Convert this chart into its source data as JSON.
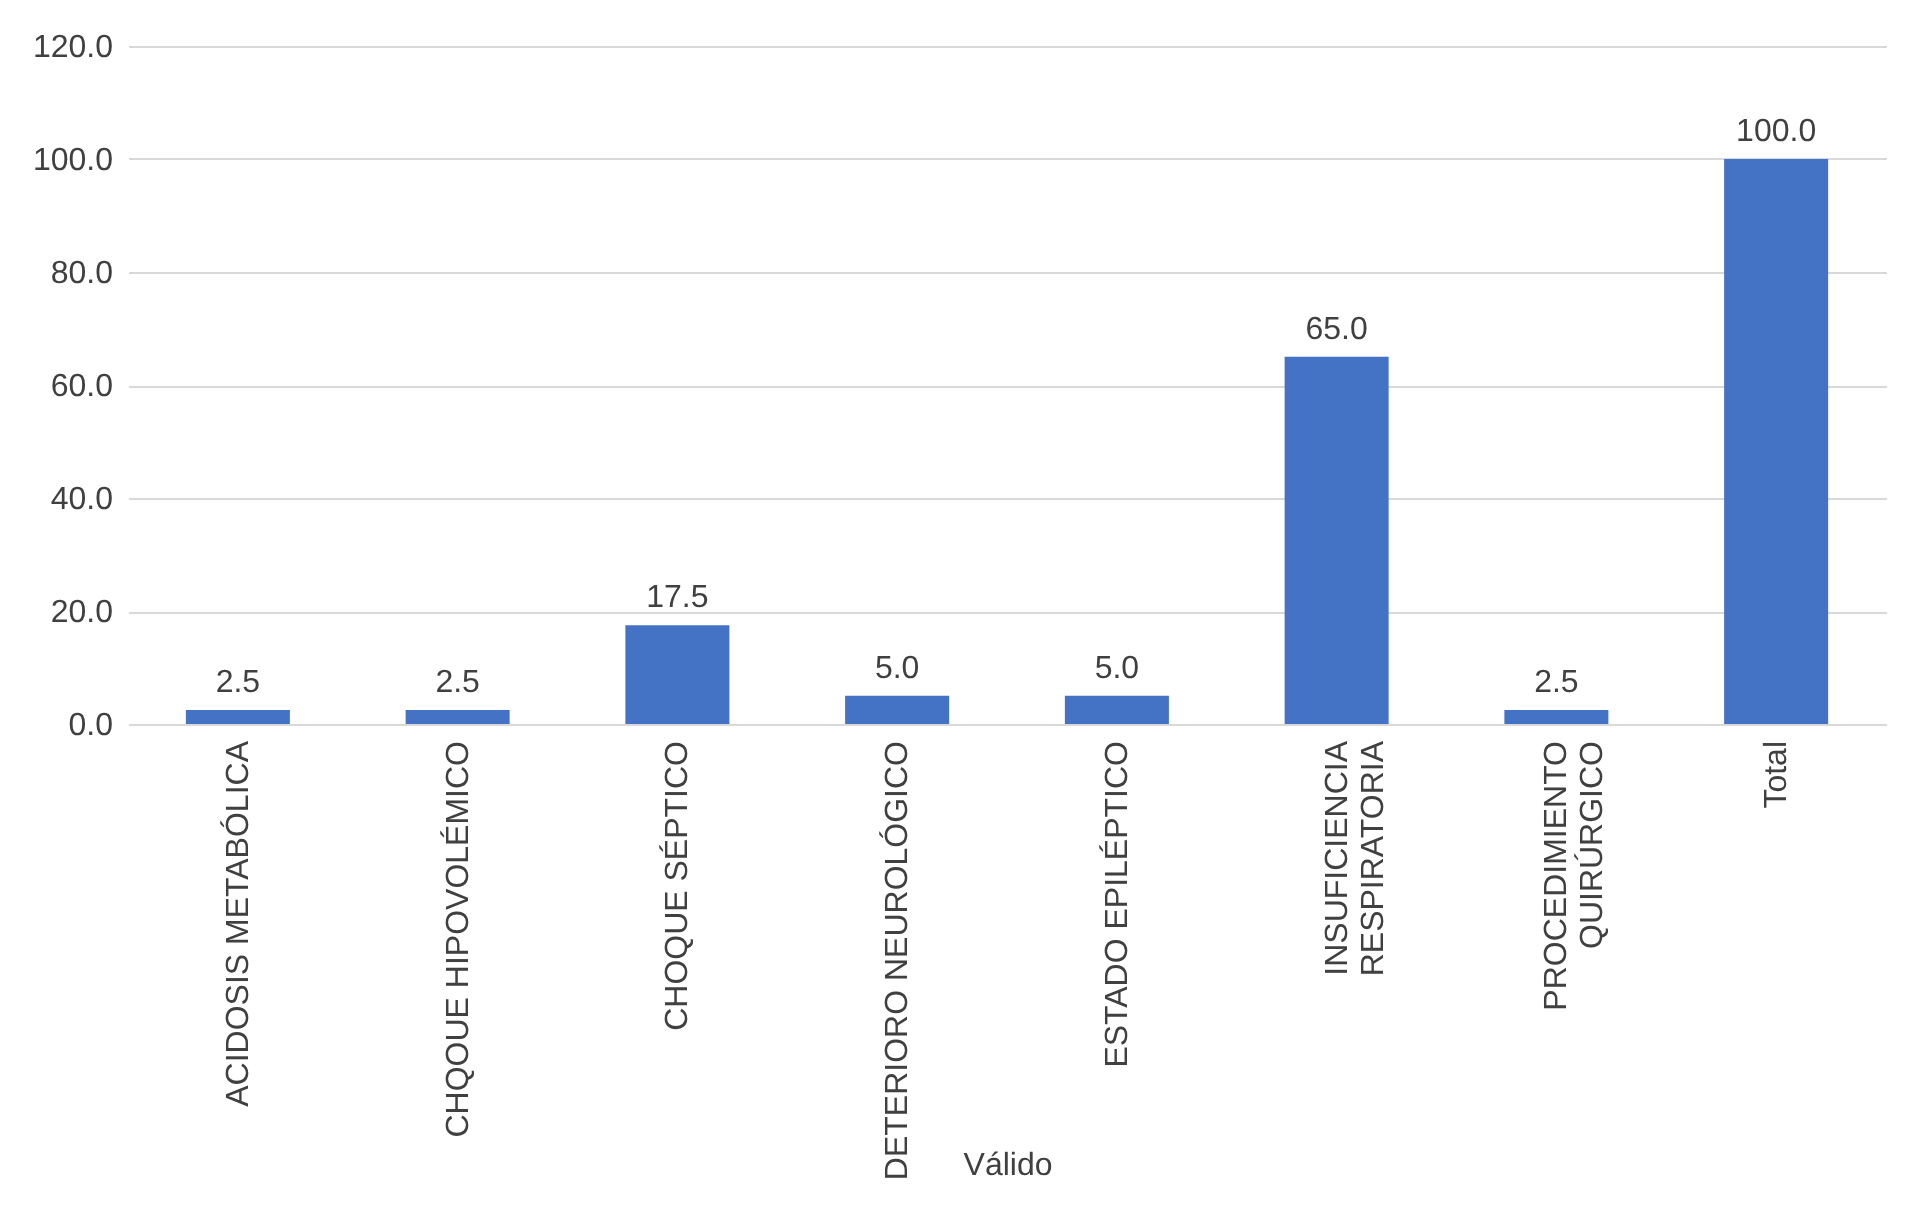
{
  "chart_data": {
    "type": "bar",
    "xlabel": "Válido",
    "categories": [
      "ACIDOSIS METABÓLICA",
      "CHQOUE HIPOVOLÉMICO",
      "CHOQUE SÉPTICO",
      "DETERIORO NEUROLÓGICO",
      "ESTADO EPILÉPTICO",
      "INSUFICIENCIA\nRESPIRATORIA",
      "PROCEDIMIENTO\nQUIRÚRGICO",
      "Total"
    ],
    "values": [
      2.5,
      2.5,
      17.5,
      5.0,
      5.0,
      65.0,
      2.5,
      100.0
    ],
    "value_labels": [
      "2.5",
      "2.5",
      "17.5",
      "5.0",
      "5.0",
      "65.0",
      "2.5",
      "100.0"
    ],
    "color": "#4472c4",
    "ylim": [
      0,
      120
    ],
    "yticks": [
      {
        "value": 0,
        "label": "0.0"
      },
      {
        "value": 20,
        "label": "20.0"
      },
      {
        "value": 40,
        "label": "40.0"
      },
      {
        "value": 60,
        "label": "60.0"
      },
      {
        "value": 80,
        "label": "80.0"
      },
      {
        "value": 100,
        "label": "100.0"
      },
      {
        "value": 120,
        "label": "120.0"
      }
    ],
    "grid": "y"
  }
}
